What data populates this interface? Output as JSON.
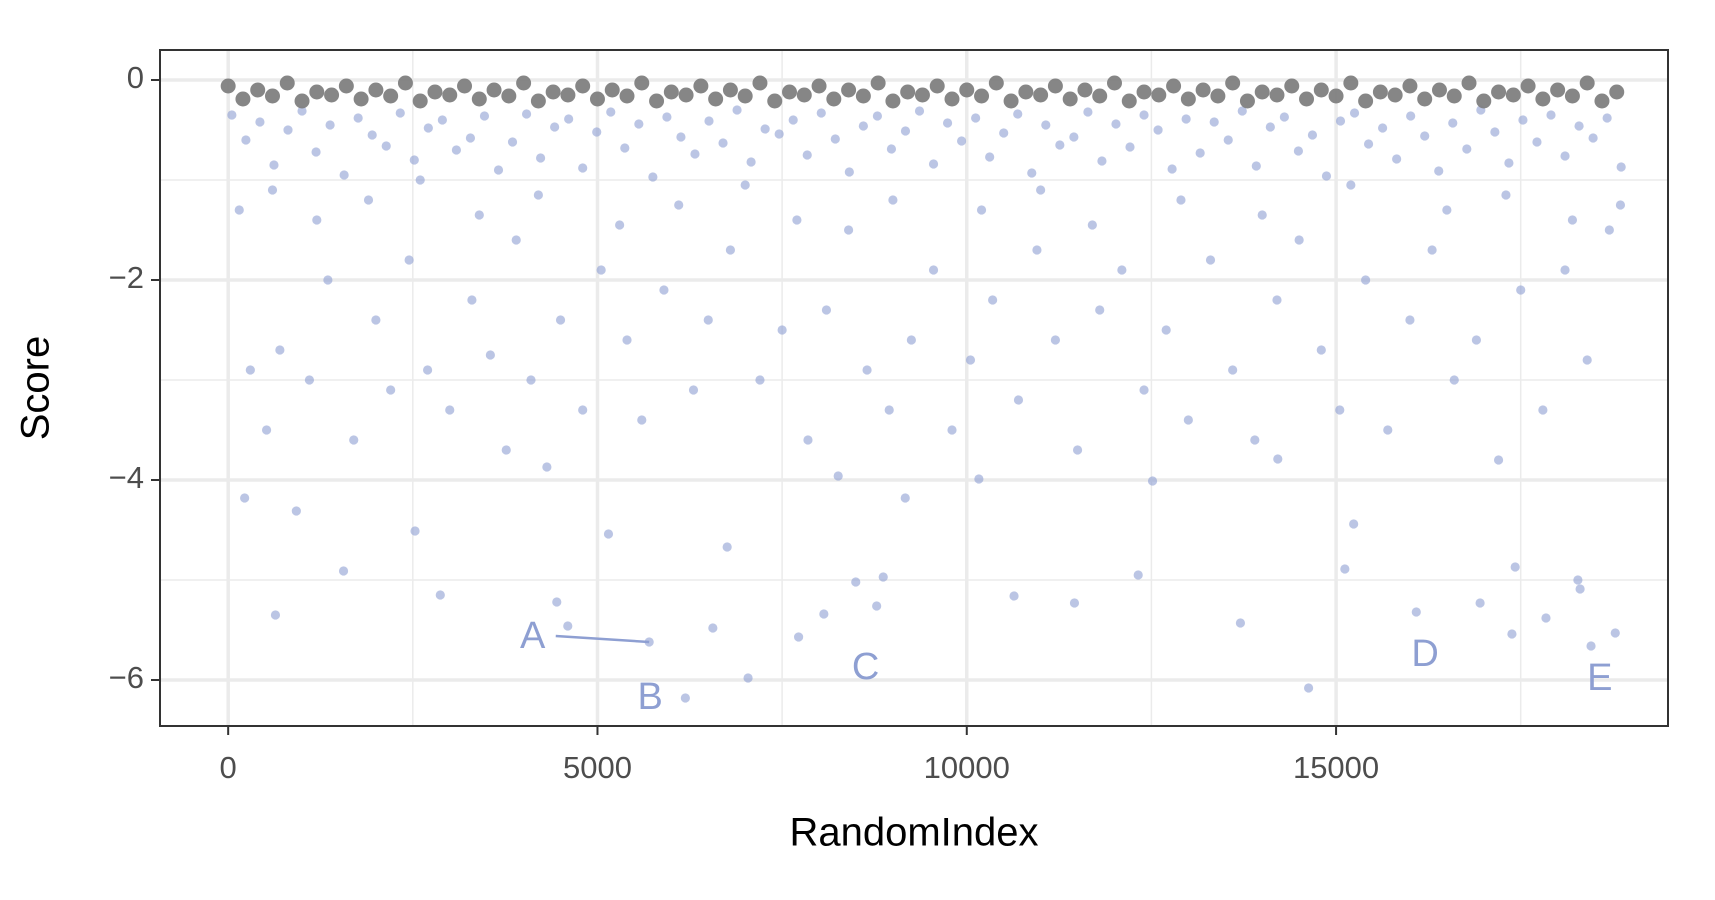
{
  "chart_data": {
    "type": "scatter",
    "x_label": "RandomIndex",
    "y_label": "Score",
    "xlim": [
      -923,
      19494
    ],
    "ylim": [
      -6.46,
      0.3
    ],
    "xticks": [
      0,
      5000,
      10000,
      15000
    ],
    "yticks": [
      {
        "value": -6,
        "label": "−6"
      },
      {
        "value": -4,
        "label": "−4"
      },
      {
        "value": -2,
        "label": "−2"
      },
      0
    ],
    "x_minor_grid": [
      2500,
      7500,
      12500,
      17500
    ],
    "y_minor_grid": [
      -5,
      -3,
      -1
    ],
    "grid": true,
    "series": [
      {
        "color": "#8e9fd2",
        "x": [
          50,
          240,
          430,
          620,
          810,
          1000,
          1190,
          1380,
          1570,
          1760,
          1950,
          2140,
          2330,
          2520,
          2710,
          2900,
          3090,
          3280,
          3470,
          3660,
          3850,
          4040,
          4230,
          4420,
          4610,
          4800,
          4990,
          5180,
          5370,
          5560,
          5750,
          5940,
          6130,
          6320,
          6510,
          6700,
          6890,
          7080,
          7270,
          7460,
          7650,
          7840,
          8030,
          8220,
          8410,
          8600,
          8790,
          8980,
          9170,
          9360,
          9550,
          9740,
          9930,
          10120,
          10310,
          10500,
          10690,
          10880,
          11070,
          11260,
          11450,
          11640,
          11830,
          12020,
          12210,
          12400,
          12590,
          12780,
          12970,
          13160,
          13350,
          13540,
          13730,
          13920,
          14110,
          14300,
          14490,
          14680,
          14870,
          15060,
          15250,
          15440,
          15630,
          15820,
          16010,
          16200,
          16390,
          16580,
          16770,
          16960,
          17150,
          17340,
          17530,
          17720,
          17910,
          18100,
          18290,
          18480,
          18670,
          18860,
          223,
          640,
          1562,
          2872,
          3765,
          4315,
          4449,
          4598,
          5700,
          6190,
          6562,
          7039,
          7723,
          8065,
          8497,
          8869,
          8780,
          10640,
          11458,
          12321,
          13705,
          14628,
          15119,
          16086,
          17381,
          17842,
          18274,
          18452,
          18780,
          17425,
          18304,
          16950,
          15238,
          14211,
          12515,
          10164,
          9167,
          8259,
          6756,
          5149,
          2530,
          923,
          300,
          520,
          700,
          1100,
          1350,
          1700,
          2000,
          2200,
          2450,
          2700,
          3000,
          3300,
          3550,
          3900,
          4100,
          4500,
          4800,
          5050,
          5400,
          5600,
          5900,
          6300,
          6500,
          6800,
          7200,
          7500,
          7850,
          8100,
          8400,
          8650,
          8950,
          9250,
          9550,
          9800,
          10050,
          10350,
          10700,
          10950,
          11200,
          11500,
          11800,
          12100,
          12400,
          12700,
          13000,
          13300,
          13600,
          13900,
          14200,
          14500,
          14800,
          15050,
          15400,
          15700,
          16000,
          16300,
          16600,
          16900,
          17200,
          17500,
          17800,
          18100,
          18400,
          18700,
          150,
          600,
          1200,
          1900,
          2600,
          3400,
          4200,
          5300,
          6100,
          7000,
          7700,
          9000,
          10200,
          11000,
          11700,
          12900,
          14000,
          15200,
          16500,
          17300,
          18200,
          18850
        ],
        "values": [
          -0.35,
          -0.6,
          -0.42,
          -0.85,
          -0.5,
          -0.31,
          -0.72,
          -0.45,
          -0.95,
          -0.38,
          -0.55,
          -0.66,
          -0.33,
          -0.8,
          -0.48,
          -0.4,
          -0.7,
          -0.58,
          -0.36,
          -0.9,
          -0.62,
          -0.34,
          -0.78,
          -0.47,
          -0.39,
          -0.88,
          -0.52,
          -0.32,
          -0.68,
          -0.44,
          -0.97,
          -0.37,
          -0.57,
          -0.74,
          -0.41,
          -0.63,
          -0.3,
          -0.82,
          -0.49,
          -0.54,
          -0.4,
          -0.75,
          -0.33,
          -0.59,
          -0.92,
          -0.46,
          -0.36,
          -0.69,
          -0.51,
          -0.31,
          -0.84,
          -0.43,
          -0.61,
          -0.38,
          -0.77,
          -0.53,
          -0.34,
          -0.93,
          -0.45,
          -0.65,
          -0.57,
          -0.32,
          -0.81,
          -0.44,
          -0.67,
          -0.35,
          -0.5,
          -0.89,
          -0.39,
          -0.73,
          -0.42,
          -0.6,
          -0.31,
          -0.86,
          -0.47,
          -0.37,
          -0.71,
          -0.55,
          -0.96,
          -0.41,
          -0.33,
          -0.64,
          -0.48,
          -0.79,
          -0.36,
          -0.56,
          -0.91,
          -0.43,
          -0.69,
          -0.3,
          -0.52,
          -0.83,
          -0.4,
          -0.62,
          -0.35,
          -0.76,
          -0.46,
          -0.58,
          -0.38,
          -0.87,
          -4.18,
          -5.35,
          -4.91,
          -5.15,
          -3.7,
          -3.87,
          -5.22,
          -5.46,
          -5.62,
          -6.18,
          -5.48,
          -5.98,
          -5.57,
          -5.34,
          -5.02,
          -4.97,
          -5.26,
          -5.16,
          -5.23,
          -4.95,
          -5.43,
          -6.08,
          -4.89,
          -5.32,
          -5.54,
          -5.38,
          -5.0,
          -5.66,
          -5.53,
          -4.87,
          -5.09,
          -5.23,
          -4.44,
          -3.79,
          -4.01,
          -3.99,
          -4.18,
          -3.96,
          -4.67,
          -4.54,
          -4.51,
          -4.31,
          -2.9,
          -3.5,
          -2.7,
          -3.0,
          -2.0,
          -3.6,
          -2.4,
          -3.1,
          -1.8,
          -2.9,
          -3.3,
          -2.2,
          -2.75,
          -1.6,
          -3.0,
          -2.4,
          -3.3,
          -1.9,
          -2.6,
          -3.4,
          -2.1,
          -3.1,
          -2.4,
          -1.7,
          -3.0,
          -2.5,
          -3.6,
          -2.3,
          -1.5,
          -2.9,
          -3.3,
          -2.6,
          -1.9,
          -3.5,
          -2.8,
          -2.2,
          -3.2,
          -1.7,
          -2.6,
          -3.7,
          -2.3,
          -1.9,
          -3.1,
          -2.5,
          -3.4,
          -1.8,
          -2.9,
          -3.6,
          -2.2,
          -1.6,
          -2.7,
          -3.3,
          -2.0,
          -3.5,
          -2.4,
          -1.7,
          -3.0,
          -2.6,
          -3.8,
          -2.1,
          -3.3,
          -1.9,
          -2.8,
          -1.5,
          -1.3,
          -1.1,
          -1.4,
          -1.2,
          -1.0,
          -1.35,
          -1.15,
          -1.45,
          -1.25,
          -1.05,
          -1.4,
          -1.2,
          -1.3,
          -1.1,
          -1.45,
          -1.2,
          -1.35,
          -1.05,
          -1.3,
          -1.15,
          -1.4,
          -1.25
        ]
      },
      {
        "color": "#7f7f7f",
        "x": [
          0,
          200,
          400,
          600,
          800,
          1000,
          1200,
          1400,
          1600,
          1800,
          2000,
          2200,
          2400,
          2600,
          2800,
          3000,
          3200,
          3400,
          3600,
          3800,
          4000,
          4200,
          4400,
          4600,
          4800,
          5000,
          5200,
          5400,
          5600,
          5800,
          6000,
          6200,
          6400,
          6600,
          6800,
          7000,
          7200,
          7400,
          7600,
          7800,
          8000,
          8200,
          8400,
          8600,
          8800,
          9000,
          9200,
          9400,
          9600,
          9800,
          10000,
          10200,
          10400,
          10600,
          10800,
          11000,
          11200,
          11400,
          11600,
          11800,
          12000,
          12200,
          12400,
          12600,
          12800,
          13000,
          13200,
          13400,
          13600,
          13800,
          14000,
          14200,
          14400,
          14600,
          14800,
          15000,
          15200,
          15400,
          15600,
          15800,
          16000,
          16200,
          16400,
          16600,
          16800,
          17000,
          17200,
          17400,
          17600,
          17800,
          18000,
          18200,
          18400,
          18600,
          18800
        ],
        "values": [
          -0.06,
          -0.19,
          -0.1,
          -0.16,
          -0.03,
          -0.21,
          -0.12,
          -0.15,
          -0.06,
          -0.19,
          -0.1,
          -0.16,
          -0.03,
          -0.21,
          -0.12,
          -0.15,
          -0.06,
          -0.19,
          -0.1,
          -0.16,
          -0.03,
          -0.21,
          -0.12,
          -0.15,
          -0.06,
          -0.19,
          -0.1,
          -0.16,
          -0.03,
          -0.21,
          -0.12,
          -0.15,
          -0.06,
          -0.19,
          -0.1,
          -0.16,
          -0.03,
          -0.21,
          -0.12,
          -0.15,
          -0.06,
          -0.19,
          -0.1,
          -0.16,
          -0.03,
          -0.21,
          -0.12,
          -0.15,
          -0.06,
          -0.19,
          -0.1,
          -0.16,
          -0.03,
          -0.21,
          -0.12,
          -0.15,
          -0.06,
          -0.19,
          -0.1,
          -0.16,
          -0.03,
          -0.21,
          -0.12,
          -0.15,
          -0.06,
          -0.19,
          -0.1,
          -0.16,
          -0.03,
          -0.21,
          -0.12,
          -0.15,
          -0.06,
          -0.19,
          -0.1,
          -0.16,
          -0.03,
          -0.21,
          -0.12,
          -0.15,
          -0.06,
          -0.19,
          -0.1,
          -0.16,
          -0.03,
          -0.21,
          -0.12,
          -0.15,
          -0.06,
          -0.19,
          -0.1,
          -0.16,
          -0.03,
          -0.21,
          -0.12
        ]
      }
    ],
    "annotations": [
      {
        "text": "A",
        "x": 4122,
        "y": -5.58
      },
      {
        "text": "B",
        "x": 5714,
        "y": -6.19
      },
      {
        "text": "C",
        "x": 8631,
        "y": -5.89
      },
      {
        "text": "D",
        "x": 16205,
        "y": -5.76
      },
      {
        "text": "E",
        "x": 18571,
        "y": -6.0
      }
    ],
    "annotation_color": "#8e9fd2",
    "segments": [
      {
        "x": [
          4435,
          5700
        ],
        "y": [
          -5.56,
          -5.62
        ]
      }
    ]
  }
}
